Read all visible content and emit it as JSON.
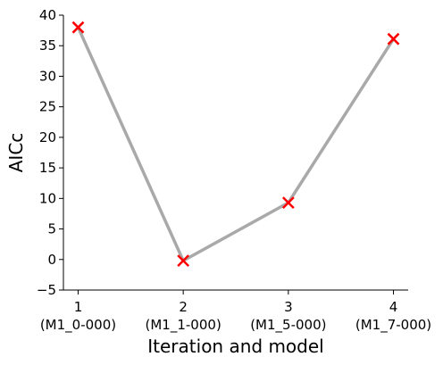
{
  "chart_data": {
    "type": "line",
    "xlabel": "Iteration and model",
    "ylabel": "AICc",
    "x": [
      1,
      2,
      3,
      4
    ],
    "x_tick_labels": [
      {
        "iteration": "1",
        "model": "(M1_0-000)"
      },
      {
        "iteration": "2",
        "model": "(M1_1-000)"
      },
      {
        "iteration": "3",
        "model": "(M1_5-000)"
      },
      {
        "iteration": "4",
        "model": "(M1_7-000)"
      }
    ],
    "y": [
      38.0,
      -0.2,
      9.3,
      36.1
    ],
    "ylim": [
      -5,
      40
    ],
    "xlim": [
      0.86,
      4.14
    ],
    "y_ticks": [
      -5,
      0,
      5,
      10,
      15,
      20,
      25,
      30,
      35,
      40
    ],
    "y_tick_labels": [
      "−5",
      "0",
      "5",
      "10",
      "15",
      "20",
      "25",
      "30",
      "35",
      "40"
    ],
    "grid": false,
    "line_color": "#a9a9a9",
    "marker_color": "#ff0000",
    "marker": "x"
  }
}
